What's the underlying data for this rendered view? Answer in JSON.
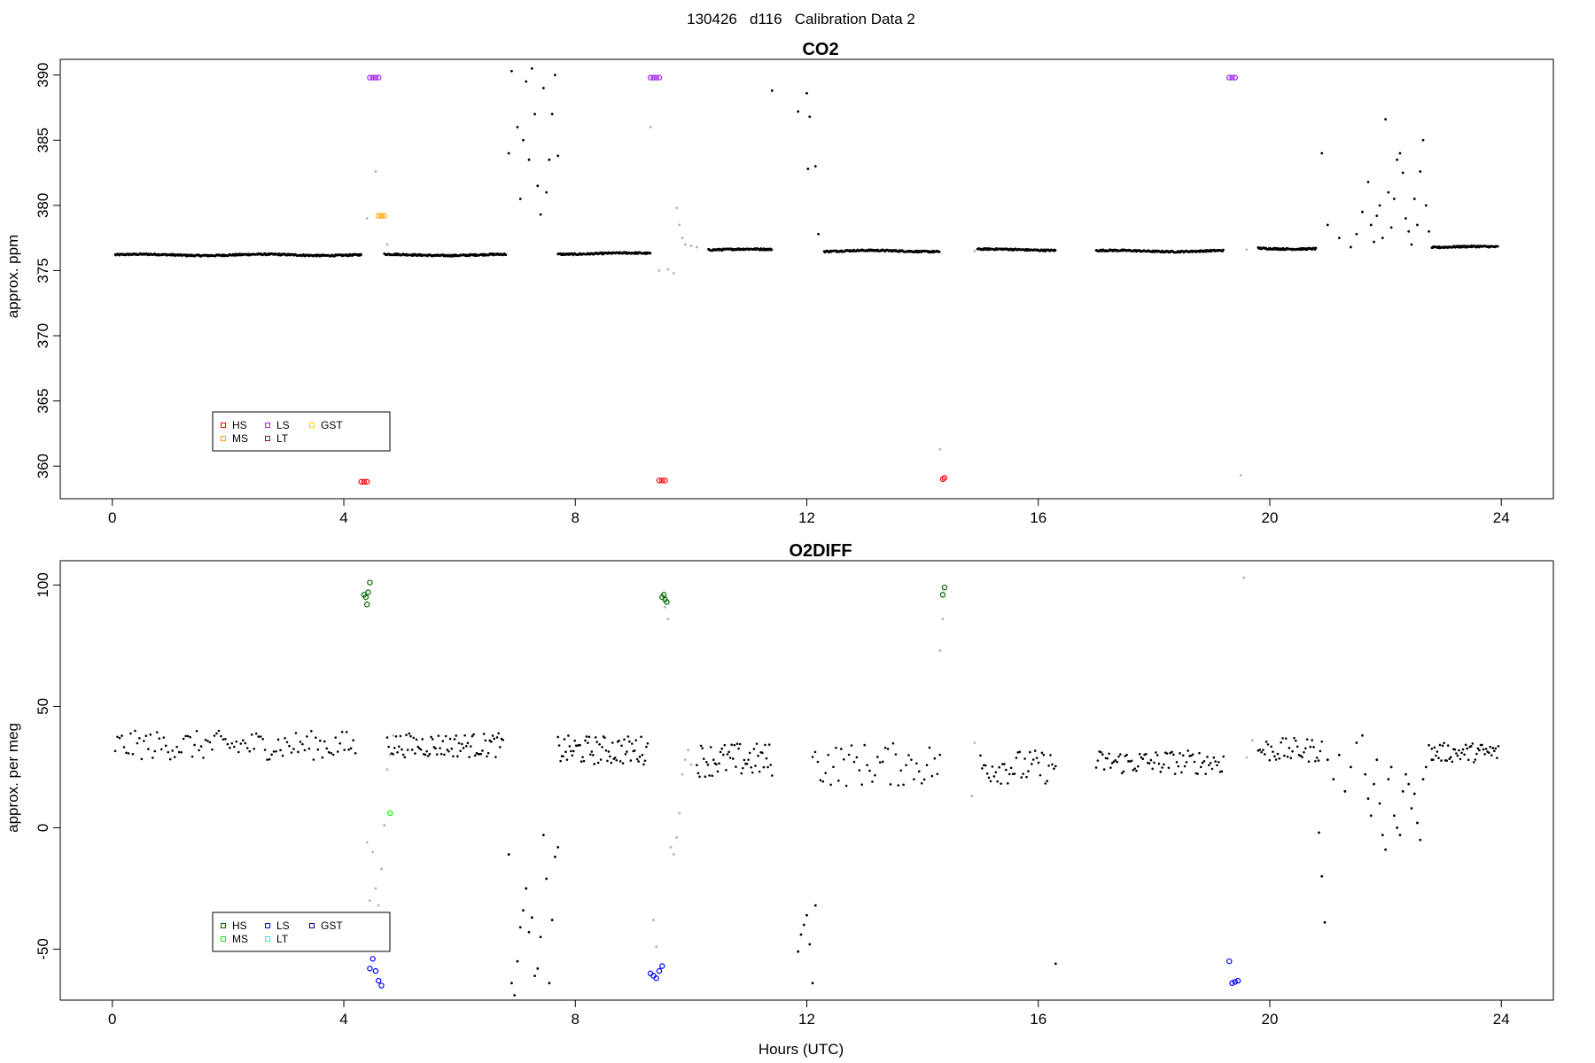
{
  "figure": {
    "title": "130426   d116   Calibration Data 2",
    "xlabel": "Hours (UTC)"
  },
  "chart_data": [
    {
      "type": "scatter",
      "title": "CO2",
      "xlabel": "",
      "ylabel": "approx. ppm",
      "xlim": [
        -0.9,
        24.9
      ],
      "ylim": [
        357.5,
        391.2
      ],
      "xticks": [
        0,
        4,
        8,
        12,
        16,
        20,
        24
      ],
      "yticks": [
        360,
        365,
        370,
        375,
        380,
        385,
        390
      ],
      "legend": {
        "placement": "bottom-left",
        "entries": [
          {
            "name": "HS",
            "color": "#ff0000"
          },
          {
            "name": "MS",
            "color": "#ffa500"
          },
          {
            "name": "LS",
            "color": "#a020f0"
          },
          {
            "name": "LT",
            "color": "#8b1a1a"
          },
          {
            "name": "GST",
            "color": "#ffd700"
          }
        ]
      },
      "colors": {
        "data": "#000000",
        "flagged": "#b3b3b3"
      },
      "baseline_segments": [
        {
          "x0": 0.05,
          "x1": 4.3,
          "y": 376.2
        },
        {
          "x0": 4.7,
          "x1": 6.8,
          "y": 376.2
        },
        {
          "x0": 7.7,
          "x1": 9.3,
          "y": 376.3
        },
        {
          "x0": 10.3,
          "x1": 11.4,
          "y": 376.6
        },
        {
          "x0": 12.3,
          "x1": 14.3,
          "y": 376.5
        },
        {
          "x0": 14.95,
          "x1": 16.3,
          "y": 376.6
        },
        {
          "x0": 17.0,
          "x1": 19.2,
          "y": 376.5
        },
        {
          "x0": 19.8,
          "x1": 20.8,
          "y": 376.7
        },
        {
          "x0": 22.8,
          "x1": 23.95,
          "y": 376.8
        }
      ],
      "series": [
        {
          "name": "HS",
          "color": "#ff0000",
          "points": [
            [
              4.3,
              358.8
            ],
            [
              4.35,
              358.8
            ],
            [
              4.4,
              358.8
            ],
            [
              9.45,
              358.9
            ],
            [
              9.5,
              358.9
            ],
            [
              9.55,
              358.9
            ],
            [
              14.35,
              359.0
            ],
            [
              14.38,
              359.1
            ]
          ]
        },
        {
          "name": "MS",
          "color": "#ffa500",
          "points": [
            [
              4.6,
              379.2
            ],
            [
              4.65,
              379.2
            ],
            [
              4.7,
              379.2
            ]
          ]
        },
        {
          "name": "LS",
          "color": "#a020f0",
          "points": [
            [
              4.45,
              389.8
            ],
            [
              4.5,
              389.8
            ],
            [
              4.55,
              389.8
            ],
            [
              4.6,
              389.8
            ],
            [
              9.3,
              389.8
            ],
            [
              9.35,
              389.8
            ],
            [
              9.4,
              389.8
            ],
            [
              9.45,
              389.8
            ],
            [
              19.3,
              389.8
            ],
            [
              19.35,
              389.8
            ],
            [
              19.4,
              389.8
            ]
          ]
        }
      ],
      "scatter_points": [
        [
          6.85,
          384.0
        ],
        [
          6.9,
          390.3
        ],
        [
          7.0,
          386.0
        ],
        [
          7.05,
          380.5
        ],
        [
          7.1,
          385.0
        ],
        [
          7.15,
          389.5
        ],
        [
          7.2,
          383.5
        ],
        [
          7.25,
          390.5
        ],
        [
          7.3,
          387.0
        ],
        [
          7.35,
          381.5
        ],
        [
          7.4,
          379.3
        ],
        [
          7.45,
          389.0
        ],
        [
          7.5,
          381.0
        ],
        [
          7.55,
          383.5
        ],
        [
          7.6,
          387.0
        ],
        [
          7.65,
          390.0
        ],
        [
          7.7,
          383.8
        ],
        [
          11.4,
          388.8
        ],
        [
          11.85,
          387.2
        ],
        [
          12.0,
          388.6
        ],
        [
          12.02,
          382.8
        ],
        [
          12.05,
          386.8
        ],
        [
          12.15,
          383.0
        ],
        [
          12.2,
          377.8
        ],
        [
          20.9,
          384.0
        ],
        [
          21.0,
          378.5
        ],
        [
          21.2,
          377.5
        ],
        [
          21.4,
          376.8
        ],
        [
          21.5,
          377.8
        ],
        [
          21.6,
          379.5
        ],
        [
          21.7,
          381.8
        ],
        [
          21.75,
          378.5
        ],
        [
          21.8,
          377.2
        ],
        [
          21.85,
          379.2
        ],
        [
          21.9,
          380.0
        ],
        [
          21.95,
          377.5
        ],
        [
          22.0,
          386.6
        ],
        [
          22.05,
          381.0
        ],
        [
          22.1,
          378.3
        ],
        [
          22.15,
          380.5
        ],
        [
          22.2,
          383.5
        ],
        [
          22.25,
          384.0
        ],
        [
          22.3,
          382.5
        ],
        [
          22.35,
          379.0
        ],
        [
          22.4,
          378.0
        ],
        [
          22.45,
          377.0
        ],
        [
          22.5,
          380.5
        ],
        [
          22.55,
          378.5
        ],
        [
          22.6,
          382.6
        ],
        [
          22.65,
          385.0
        ],
        [
          22.7,
          380.0
        ],
        [
          22.75,
          378.0
        ]
      ],
      "flagged_points": [
        [
          4.55,
          382.6
        ],
        [
          4.4,
          379.0
        ],
        [
          4.75,
          377.0
        ],
        [
          9.3,
          386.0
        ],
        [
          9.45,
          375.0
        ],
        [
          9.6,
          375.1
        ],
        [
          9.7,
          374.8
        ],
        [
          9.75,
          379.8
        ],
        [
          9.8,
          378.5
        ],
        [
          9.85,
          377.5
        ],
        [
          9.9,
          377.0
        ],
        [
          10.0,
          376.9
        ],
        [
          10.1,
          376.8
        ],
        [
          14.3,
          361.3
        ],
        [
          14.9,
          376.5
        ],
        [
          19.5,
          359.3
        ],
        [
          19.6,
          376.6
        ]
      ]
    },
    {
      "type": "scatter",
      "title": "O2DIFF",
      "xlabel": "Hours (UTC)",
      "ylabel": "approx. per meg",
      "xlim": [
        -0.9,
        24.9
      ],
      "ylim": [
        -71,
        110
      ],
      "xticks": [
        0,
        4,
        8,
        12,
        16,
        20,
        24
      ],
      "yticks": [
        -50,
        0,
        50,
        100
      ],
      "legend": {
        "placement": "bottom-left",
        "entries": [
          {
            "name": "HS",
            "color": "#006400"
          },
          {
            "name": "MS",
            "color": "#00ff00"
          },
          {
            "name": "LS",
            "color": "#0000ff"
          },
          {
            "name": "LT",
            "color": "#00ffff"
          },
          {
            "name": "GST",
            "color": "#00008b"
          }
        ]
      },
      "colors": {
        "data": "#000000",
        "flagged": "#b3b3b3"
      },
      "noisy_segments": [
        {
          "x0": 0.05,
          "x1": 4.2,
          "mean": 34,
          "spread": 6,
          "n": 110
        },
        {
          "x0": 4.75,
          "x1": 6.75,
          "mean": 34,
          "spread": 5,
          "n": 80
        },
        {
          "x0": 7.7,
          "x1": 9.25,
          "mean": 32,
          "spread": 6,
          "n": 70
        },
        {
          "x0": 10.1,
          "x1": 11.4,
          "mean": 28,
          "spread": 7,
          "n": 55
        },
        {
          "x0": 12.1,
          "x1": 14.3,
          "mean": 26,
          "spread": 9,
          "n": 50
        },
        {
          "x0": 15.0,
          "x1": 16.3,
          "mean": 25,
          "spread": 7,
          "n": 45
        },
        {
          "x0": 17.0,
          "x1": 19.2,
          "mean": 27,
          "spread": 5,
          "n": 80
        },
        {
          "x0": 19.8,
          "x1": 20.9,
          "mean": 32,
          "spread": 5,
          "n": 40
        },
        {
          "x0": 22.8,
          "x1": 23.95,
          "mean": 31,
          "spread": 4,
          "n": 50
        }
      ],
      "series": [
        {
          "name": "HS",
          "color": "#006400",
          "points": [
            [
              4.35,
              96
            ],
            [
              4.38,
              95
            ],
            [
              4.4,
              92
            ],
            [
              4.42,
              97
            ],
            [
              4.45,
              101
            ],
            [
              9.5,
              95
            ],
            [
              9.53,
              96
            ],
            [
              9.55,
              94
            ],
            [
              9.58,
              93
            ],
            [
              14.35,
              96
            ],
            [
              14.38,
              99
            ]
          ]
        },
        {
          "name": "MS",
          "color": "#00ff00",
          "points": [
            [
              4.8,
              6
            ]
          ]
        },
        {
          "name": "LS",
          "color": "#0000ff",
          "points": [
            [
              4.45,
              -58
            ],
            [
              4.5,
              -54
            ],
            [
              4.55,
              -59
            ],
            [
              4.6,
              -63
            ],
            [
              4.65,
              -65
            ],
            [
              9.3,
              -60
            ],
            [
              9.35,
              -61
            ],
            [
              9.4,
              -62
            ],
            [
              9.45,
              -59
            ],
            [
              9.5,
              -57
            ],
            [
              19.3,
              -55
            ],
            [
              19.35,
              -64
            ],
            [
              19.4,
              -63.5
            ],
            [
              19.45,
              -63
            ]
          ]
        }
      ],
      "scatter_points": [
        [
          6.85,
          -11
        ],
        [
          6.9,
          -64
        ],
        [
          6.95,
          -69
        ],
        [
          7.0,
          -55
        ],
        [
          7.05,
          -41
        ],
        [
          7.1,
          -34
        ],
        [
          7.15,
          -25
        ],
        [
          7.2,
          -43
        ],
        [
          7.25,
          -37
        ],
        [
          7.3,
          -61
        ],
        [
          7.35,
          -58
        ],
        [
          7.4,
          -45
        ],
        [
          7.45,
          -3
        ],
        [
          7.5,
          -21
        ],
        [
          7.55,
          -64
        ],
        [
          7.6,
          -38
        ],
        [
          7.65,
          -12
        ],
        [
          7.7,
          -8
        ],
        [
          11.85,
          -51
        ],
        [
          11.9,
          -44
        ],
        [
          11.95,
          -40
        ],
        [
          12.0,
          -36
        ],
        [
          12.05,
          -48
        ],
        [
          12.1,
          -64
        ],
        [
          12.15,
          -32
        ],
        [
          16.3,
          -56
        ],
        [
          20.85,
          -2
        ],
        [
          20.9,
          -20
        ],
        [
          20.95,
          -39
        ],
        [
          21.0,
          28
        ],
        [
          21.1,
          20
        ],
        [
          21.2,
          30
        ],
        [
          21.3,
          15
        ],
        [
          21.4,
          25
        ],
        [
          21.5,
          35
        ],
        [
          21.6,
          38
        ],
        [
          21.65,
          22
        ],
        [
          21.7,
          12
        ],
        [
          21.75,
          5
        ],
        [
          21.8,
          18
        ],
        [
          21.85,
          28
        ],
        [
          21.9,
          10
        ],
        [
          21.95,
          -3
        ],
        [
          22.0,
          -9
        ],
        [
          22.05,
          20
        ],
        [
          22.1,
          25
        ],
        [
          22.15,
          5
        ],
        [
          22.2,
          0
        ],
        [
          22.25,
          -3
        ],
        [
          22.3,
          15
        ],
        [
          22.35,
          22
        ],
        [
          22.4,
          18
        ],
        [
          22.45,
          8
        ],
        [
          22.5,
          14
        ],
        [
          22.55,
          2
        ],
        [
          22.6,
          -5
        ],
        [
          22.65,
          20
        ],
        [
          22.7,
          25
        ],
        [
          22.75,
          34
        ],
        [
          22.8,
          28
        ]
      ],
      "flagged_points": [
        [
          4.4,
          -6
        ],
        [
          4.45,
          -30
        ],
        [
          4.5,
          -10
        ],
        [
          4.55,
          -25
        ],
        [
          4.6,
          -32
        ],
        [
          4.65,
          -17
        ],
        [
          4.7,
          1
        ],
        [
          4.75,
          24
        ],
        [
          4.8,
          30
        ],
        [
          4.85,
          38
        ],
        [
          9.35,
          -38
        ],
        [
          9.4,
          -49
        ],
        [
          9.55,
          91
        ],
        [
          9.6,
          86
        ],
        [
          9.65,
          -8
        ],
        [
          9.7,
          -11
        ],
        [
          9.75,
          -4
        ],
        [
          9.8,
          6
        ],
        [
          9.85,
          22
        ],
        [
          9.9,
          28
        ],
        [
          9.95,
          32
        ],
        [
          10.0,
          26
        ],
        [
          14.35,
          86
        ],
        [
          14.3,
          73
        ],
        [
          14.9,
          35
        ],
        [
          14.85,
          13
        ],
        [
          19.55,
          103
        ],
        [
          19.6,
          29
        ],
        [
          19.7,
          36
        ]
      ]
    }
  ]
}
